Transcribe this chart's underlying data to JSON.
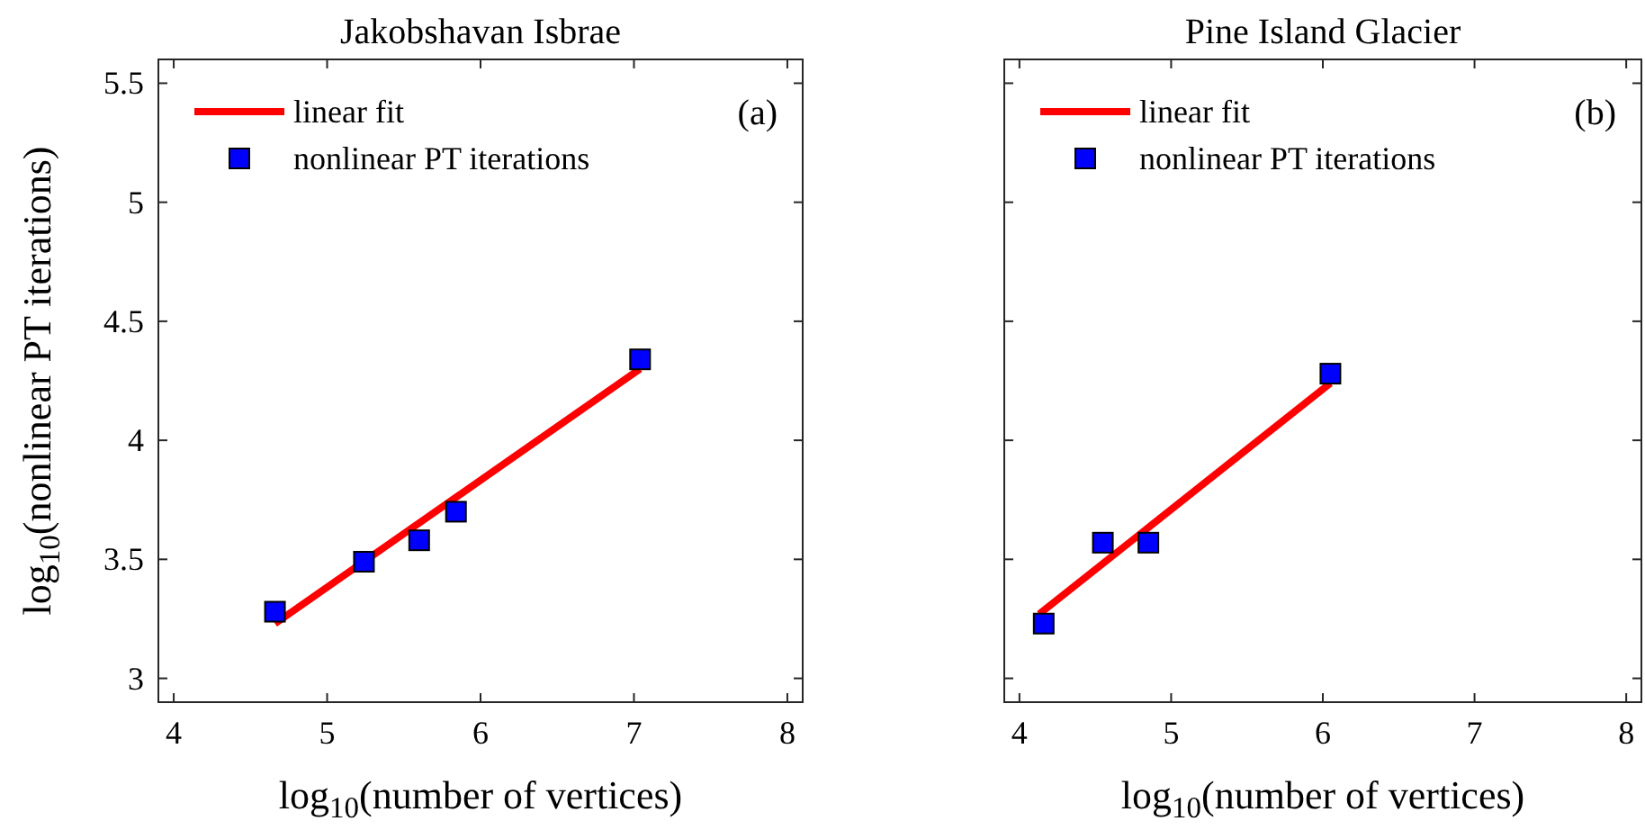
{
  "chart_data": [
    {
      "type": "scatter",
      "title": "Jakobshavan Isbrae",
      "xlabel": "log$_{10}$(number of vertices)",
      "ylabel": "log$_{10}$(nonlinear PT iterations)",
      "xlim": [
        3.9,
        8.1
      ],
      "ylim": [
        2.9,
        5.6
      ],
      "xticks": [
        4,
        5,
        6,
        7,
        8
      ],
      "yticks": [
        3,
        3.5,
        4,
        4.5,
        5,
        5.5
      ],
      "grid": false,
      "legend": "top left",
      "annotations": [
        "(a)"
      ],
      "series": [
        {
          "name": "linear fit",
          "type": "line",
          "color": "#ff0000",
          "x": [
            4.66,
            7.04
          ],
          "values": [
            3.23,
            4.3
          ],
          "line_style": "solid"
        },
        {
          "name": "nonlinear PT iterations",
          "type": "scatter",
          "color": "#0000ff",
          "x": [
            4.66,
            5.24,
            5.6,
            5.84,
            7.04
          ],
          "values": [
            3.28,
            3.49,
            3.58,
            3.7,
            4.34
          ],
          "marker": "square"
        }
      ]
    },
    {
      "type": "scatter",
      "title": "Pine Island Glacier",
      "xlabel": "log$_{10}$(number of vertices)",
      "xlim": [
        3.9,
        8.1
      ],
      "ylim": [
        2.9,
        5.6
      ],
      "xticks": [
        4,
        5,
        6,
        7,
        8
      ],
      "yticks": [
        3,
        3.5,
        4,
        4.5,
        5,
        5.5
      ],
      "tick_labels": "x",
      "grid": false,
      "legend": "top left",
      "annotations": [
        "(b)"
      ],
      "series": [
        {
          "name": "linear fit",
          "type": "line",
          "color": "#ff0000",
          "x": [
            4.13,
            6.05
          ],
          "values": [
            3.27,
            4.24
          ],
          "line_style": "solid"
        },
        {
          "name": "nonlinear PT iterations",
          "type": "scatter",
          "color": "#0000ff",
          "x": [
            4.16,
            4.55,
            4.85,
            6.05
          ],
          "values": [
            3.23,
            3.57,
            3.57,
            4.28
          ],
          "marker": "square"
        }
      ]
    }
  ]
}
